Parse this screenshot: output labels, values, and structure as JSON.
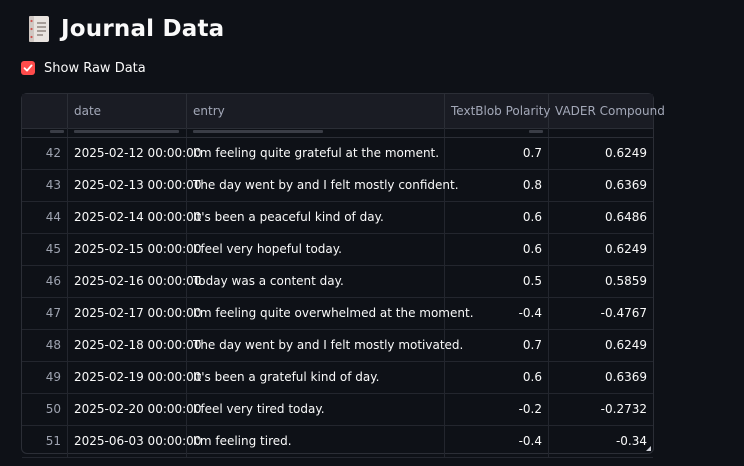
{
  "page": {
    "title": "Journal Data",
    "title_icon": "notebook-icon"
  },
  "toggle": {
    "label": "Show Raw Data",
    "checked": true,
    "accent_color": "#ff4b4b"
  },
  "table": {
    "columns": [
      "",
      "date",
      "entry",
      "TextBlob Polarity",
      "VADER Compound"
    ],
    "rows": [
      [
        "42",
        "2025-02-12 00:00:00",
        "I'm feeling quite grateful at the moment.",
        "0.7",
        "0.6249"
      ],
      [
        "43",
        "2025-02-13 00:00:00",
        "The day went by and I felt mostly confident.",
        "0.8",
        "0.6369"
      ],
      [
        "44",
        "2025-02-14 00:00:00",
        "It's been a peaceful kind of day.",
        "0.6",
        "0.6486"
      ],
      [
        "45",
        "2025-02-15 00:00:00",
        "I feel very hopeful today.",
        "0.6",
        "0.6249"
      ],
      [
        "46",
        "2025-02-16 00:00:00",
        "Today was a content day.",
        "0.5",
        "0.5859"
      ],
      [
        "47",
        "2025-02-17 00:00:00",
        "I'm feeling quite overwhelmed at the moment.",
        "-0.4",
        "-0.4767"
      ],
      [
        "48",
        "2025-02-18 00:00:00",
        "The day went by and I felt mostly motivated.",
        "0.7",
        "0.6249"
      ],
      [
        "49",
        "2025-02-19 00:00:00",
        "It's been a grateful kind of day.",
        "0.6",
        "0.6369"
      ],
      [
        "50",
        "2025-02-20 00:00:00",
        "I feel very tired today.",
        "-0.2",
        "-0.2732"
      ],
      [
        "51",
        "2025-06-03 00:00:00",
        "I'm feeling tired.",
        "-0.4",
        "-0.34"
      ]
    ]
  }
}
